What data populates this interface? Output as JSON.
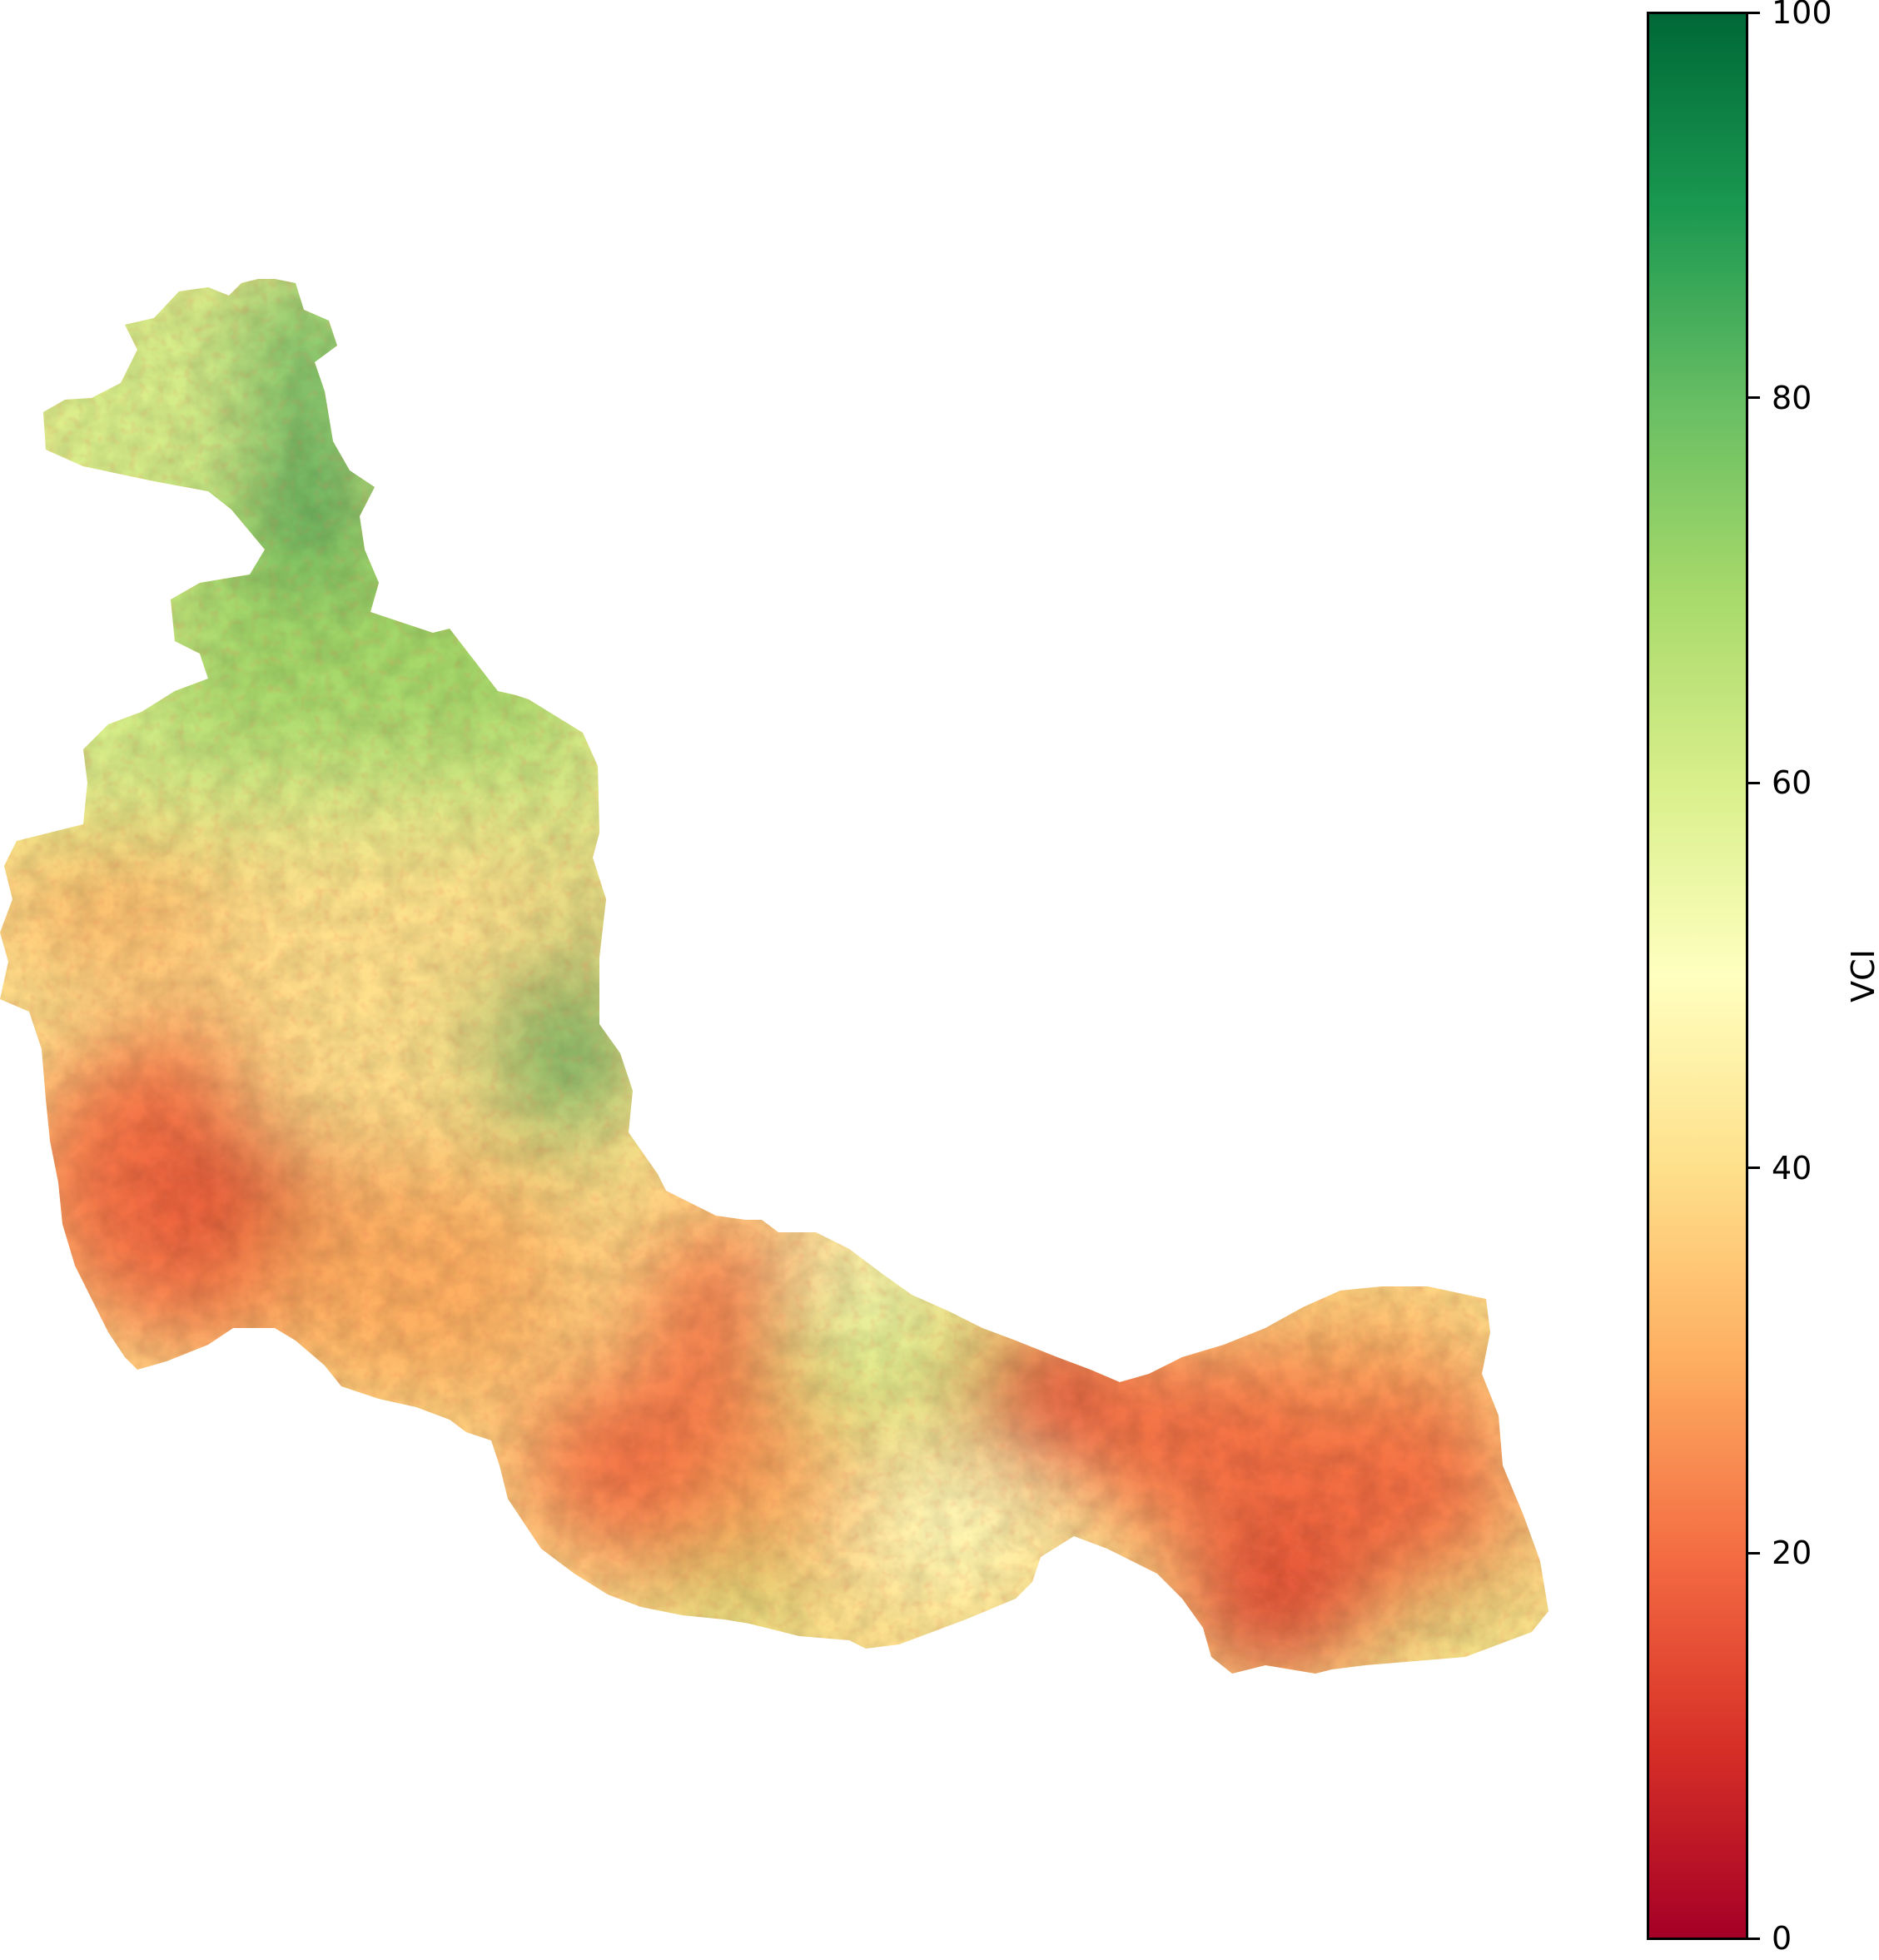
{
  "map": {
    "colormap": [
      "#a50026",
      "#d73027",
      "#f46d43",
      "#fdae61",
      "#fee08b",
      "#ffffbf",
      "#d9ef8b",
      "#a6d96a",
      "#66bd63",
      "#1a9850",
      "#006837"
    ]
  },
  "colorbar": {
    "label": "VCI",
    "min": 0,
    "max": 100,
    "ticks": [
      {
        "value": 0,
        "label": "0"
      },
      {
        "value": 20,
        "label": "20"
      },
      {
        "value": 40,
        "label": "40"
      },
      {
        "value": 60,
        "label": "60"
      },
      {
        "value": 80,
        "label": "80"
      },
      {
        "value": 100,
        "label": "100"
      }
    ]
  }
}
